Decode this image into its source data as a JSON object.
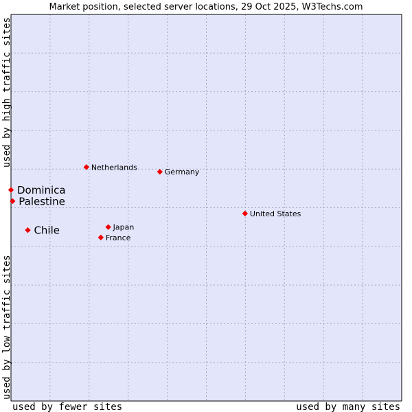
{
  "chart_data": {
    "type": "scatter",
    "title": "Market position, selected server locations, 29 Oct 2025, W3Techs.com",
    "xlabel_left": "used by fewer sites",
    "xlabel_right": "used by many sites",
    "ylabel_bottom": "used by low traffic sites",
    "ylabel_top": "used by high traffic sites",
    "grid": true,
    "xlim": [
      0,
      10
    ],
    "ylim": [
      0,
      10
    ],
    "points": [
      {
        "label": "Netherlands",
        "x": 1.93,
        "y": 6.05,
        "highlight": false
      },
      {
        "label": "Germany",
        "x": 3.81,
        "y": 5.93,
        "highlight": false
      },
      {
        "label": "Dominica",
        "x": 0.0,
        "y": 5.46,
        "highlight": true
      },
      {
        "label": "Palestine",
        "x": 0.04,
        "y": 5.17,
        "highlight": true
      },
      {
        "label": "United States",
        "x": 5.99,
        "y": 4.85,
        "highlight": false
      },
      {
        "label": "Japan",
        "x": 2.49,
        "y": 4.5,
        "highlight": false
      },
      {
        "label": "France",
        "x": 2.3,
        "y": 4.23,
        "highlight": false
      },
      {
        "label": "Chile",
        "x": 0.43,
        "y": 4.42,
        "highlight": true
      }
    ]
  },
  "colors": {
    "plot_bg": "#e3e5fb",
    "grid": "#a9a9c0",
    "axis": "#000000",
    "point": "#ee0000"
  }
}
